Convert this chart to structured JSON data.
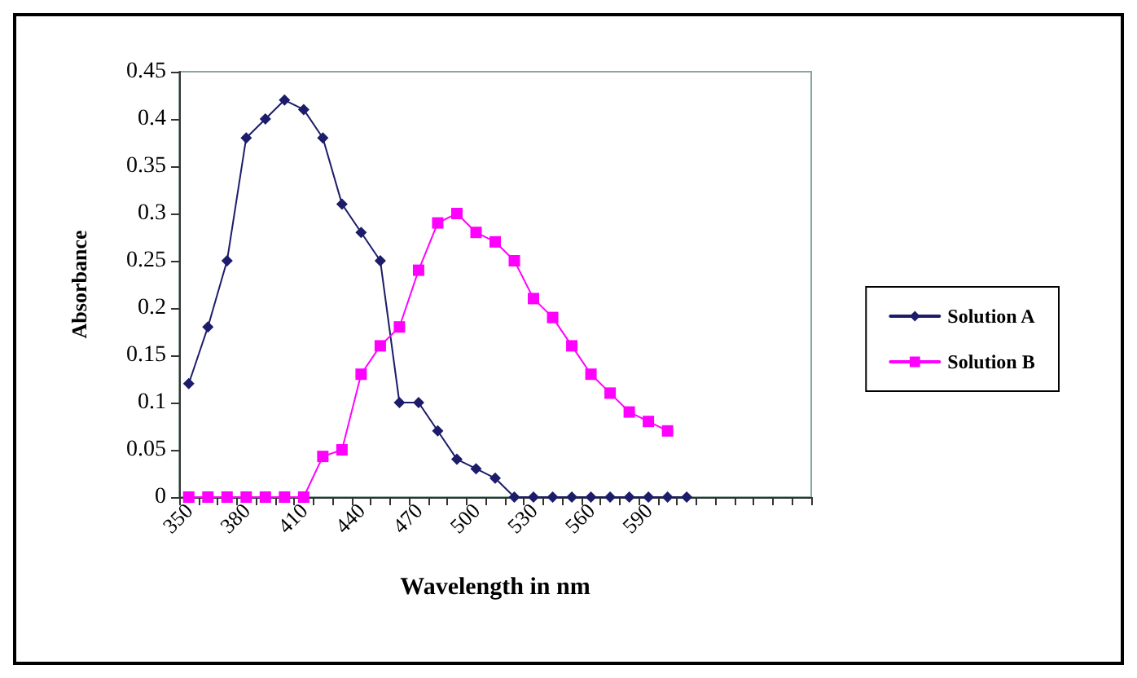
{
  "chart_data": {
    "type": "line",
    "xlabel": "Wavelength in nm",
    "ylabel": "Absorbance",
    "categories": [
      "350",
      null,
      null,
      "380",
      null,
      null,
      "410",
      null,
      null,
      "440",
      null,
      null,
      "470",
      null,
      null,
      "500",
      null,
      null,
      "530",
      null,
      null,
      "560",
      null,
      null,
      "590",
      null,
      null,
      null,
      null,
      null,
      null,
      null,
      null
    ],
    "series": [
      {
        "name": "Solution A",
        "color": "#1c1c6b",
        "marker": "diamond",
        "values": [
          0.12,
          0.18,
          0.25,
          0.38,
          0.4,
          0.42,
          0.41,
          0.38,
          0.31,
          0.28,
          0.25,
          0.1,
          0.1,
          0.07,
          0.04,
          0.03,
          0.02,
          0,
          0,
          0,
          0,
          0,
          0,
          0,
          0,
          0,
          0,
          null,
          null,
          null,
          null,
          null,
          null
        ]
      },
      {
        "name": "Solution B",
        "color": "#ff00ff",
        "marker": "square",
        "values": [
          0,
          0,
          0,
          0,
          0,
          0,
          0,
          0.043,
          0.05,
          0.13,
          0.16,
          0.18,
          0.24,
          0.29,
          0.3,
          0.28,
          0.27,
          0.25,
          0.21,
          0.19,
          0.16,
          0.13,
          0.11,
          0.09,
          0.08,
          0.07,
          null,
          null,
          null,
          null,
          null,
          null,
          null
        ]
      }
    ],
    "ylim": [
      0,
      0.45
    ],
    "yticks": [
      0,
      0.05,
      0.1,
      0.15,
      0.2,
      0.25,
      0.3,
      0.35,
      0.4,
      0.45
    ],
    "grid": false,
    "legend": "right",
    "line_style": "solid"
  }
}
